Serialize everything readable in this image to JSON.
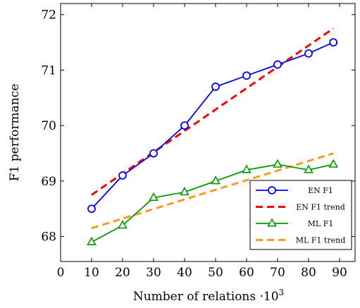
{
  "chart_data": {
    "type": "line",
    "xlabel": "Number of relations ·10",
    "xlabel_exponent": "3",
    "ylabel": "F1 performance",
    "xlim": [
      0,
      95
    ],
    "ylim": [
      67.55,
      72.2
    ],
    "xticks": [
      0,
      10,
      20,
      30,
      40,
      50,
      60,
      70,
      80,
      90
    ],
    "yticks": [
      68,
      69,
      70,
      71,
      72
    ],
    "grid": false,
    "legend_position": "bottom-right",
    "series": [
      {
        "name": "EN F1",
        "style": "solid",
        "marker": "circle",
        "color": "#0000ff",
        "x": [
          10,
          20,
          30,
          40,
          50,
          60,
          70,
          80,
          88
        ],
        "y": [
          68.5,
          69.1,
          69.5,
          70.0,
          70.7,
          70.9,
          71.1,
          71.3,
          71.5
        ]
      },
      {
        "name": "EN F1 trend",
        "style": "dashed",
        "marker": "none",
        "color": "#ff0000",
        "x": [
          10,
          88
        ],
        "y": [
          68.75,
          71.75
        ]
      },
      {
        "name": "ML F1",
        "style": "solid",
        "marker": "triangle",
        "color": "#009900",
        "x": [
          10,
          20,
          30,
          40,
          50,
          60,
          70,
          80,
          88
        ],
        "y": [
          67.9,
          68.2,
          68.7,
          68.8,
          69.0,
          69.2,
          69.3,
          69.2,
          69.3
        ]
      },
      {
        "name": "ML F1 trend",
        "style": "dashed",
        "marker": "none",
        "color": "#ff9922",
        "x": [
          10,
          88
        ],
        "y": [
          68.15,
          69.5
        ]
      }
    ]
  }
}
